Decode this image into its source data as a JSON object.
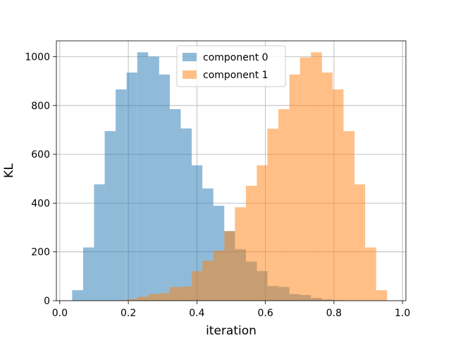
{
  "chart_data": {
    "type": "bar",
    "subtype": "overlapping histogram",
    "title": "",
    "xlabel": "iteration",
    "ylabel": "KL",
    "xlim": [
      -0.01,
      1.01
    ],
    "ylim": [
      0,
      1065
    ],
    "xticks": [
      "0.0",
      "0.2",
      "0.4",
      "0.6",
      "0.8",
      "1.0"
    ],
    "yticks": [
      "0",
      "200",
      "400",
      "600",
      "800",
      "1000"
    ],
    "grid": true,
    "legend_position": "top-center",
    "bar_opacity": 0.5,
    "series": [
      {
        "name": "component 0",
        "color": "#1f77b4",
        "bins": [
          [
            0.036,
            0.068,
            43
          ],
          [
            0.068,
            0.1,
            218
          ],
          [
            0.1,
            0.131,
            477
          ],
          [
            0.131,
            0.163,
            695
          ],
          [
            0.163,
            0.195,
            866
          ],
          [
            0.195,
            0.226,
            935
          ],
          [
            0.226,
            0.258,
            1018
          ],
          [
            0.258,
            0.29,
            1000
          ],
          [
            0.29,
            0.321,
            927
          ],
          [
            0.321,
            0.353,
            785
          ],
          [
            0.353,
            0.385,
            706
          ],
          [
            0.385,
            0.416,
            555
          ],
          [
            0.416,
            0.448,
            460
          ],
          [
            0.448,
            0.48,
            389
          ],
          [
            0.48,
            0.511,
            285
          ],
          [
            0.511,
            0.543,
            211
          ],
          [
            0.543,
            0.575,
            160
          ],
          [
            0.575,
            0.606,
            121
          ],
          [
            0.606,
            0.638,
            60
          ],
          [
            0.638,
            0.67,
            56
          ],
          [
            0.67,
            0.701,
            27
          ],
          [
            0.701,
            0.733,
            23
          ],
          [
            0.733,
            0.765,
            11
          ],
          [
            0.765,
            0.796,
            5
          ],
          [
            0.796,
            0.828,
            2
          ]
        ]
      },
      {
        "name": "component 1",
        "color": "#ff7f0e",
        "bins": [
          [
            0.163,
            0.195,
            2
          ],
          [
            0.195,
            0.226,
            7
          ],
          [
            0.226,
            0.258,
            16
          ],
          [
            0.258,
            0.29,
            27
          ],
          [
            0.29,
            0.321,
            31
          ],
          [
            0.321,
            0.353,
            56
          ],
          [
            0.353,
            0.385,
            58
          ],
          [
            0.385,
            0.416,
            121
          ],
          [
            0.416,
            0.448,
            164
          ],
          [
            0.448,
            0.48,
            205
          ],
          [
            0.48,
            0.511,
            285
          ],
          [
            0.511,
            0.543,
            383
          ],
          [
            0.543,
            0.575,
            471
          ],
          [
            0.575,
            0.606,
            555
          ],
          [
            0.606,
            0.638,
            705
          ],
          [
            0.638,
            0.67,
            785
          ],
          [
            0.67,
            0.701,
            927
          ],
          [
            0.701,
            0.733,
            997
          ],
          [
            0.733,
            0.765,
            1018
          ],
          [
            0.765,
            0.796,
            935
          ],
          [
            0.796,
            0.828,
            866
          ],
          [
            0.828,
            0.86,
            695
          ],
          [
            0.86,
            0.891,
            477
          ],
          [
            0.891,
            0.923,
            218
          ],
          [
            0.923,
            0.955,
            43
          ]
        ]
      }
    ]
  }
}
